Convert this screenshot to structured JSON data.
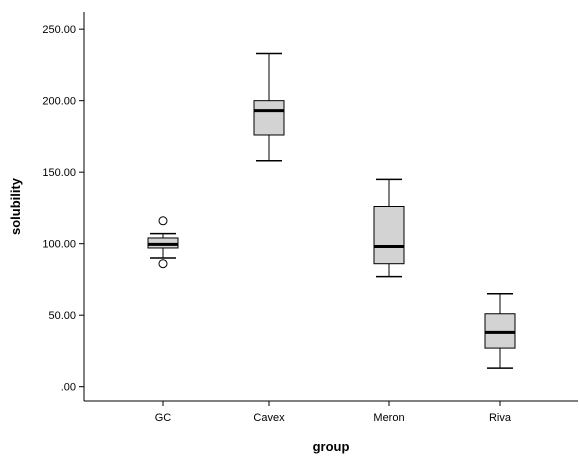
{
  "chart_data": {
    "type": "boxplot",
    "xlabel": "group",
    "ylabel": "solubility",
    "ylim": [
      -10,
      262
    ],
    "yticks": [
      0,
      50,
      100,
      150,
      200,
      250
    ],
    "ytick_labels": [
      ".00",
      "50.00",
      "100.00",
      "150.00",
      "200.00",
      "250.00"
    ],
    "categories": [
      "GC",
      "Cavex",
      "Meron",
      "Riva"
    ],
    "boxes": [
      {
        "category": "GC",
        "whisker_low": 90,
        "q1": 97,
        "median": 99.5,
        "q3": 104,
        "whisker_high": 107,
        "outliers": [
          116,
          86
        ]
      },
      {
        "category": "Cavex",
        "whisker_low": 158,
        "q1": 176,
        "median": 193,
        "q3": 200,
        "whisker_high": 233,
        "outliers": []
      },
      {
        "category": "Meron",
        "whisker_low": 77,
        "q1": 86,
        "median": 98,
        "q3": 126,
        "whisker_high": 145,
        "outliers": []
      },
      {
        "category": "Riva",
        "whisker_low": 13,
        "q1": 27,
        "median": 38,
        "q3": 51,
        "whisker_high": 65,
        "outliers": []
      }
    ],
    "box_fill": "#d3d3d3",
    "line_color": "#000000",
    "grid": false,
    "legend": "none"
  }
}
